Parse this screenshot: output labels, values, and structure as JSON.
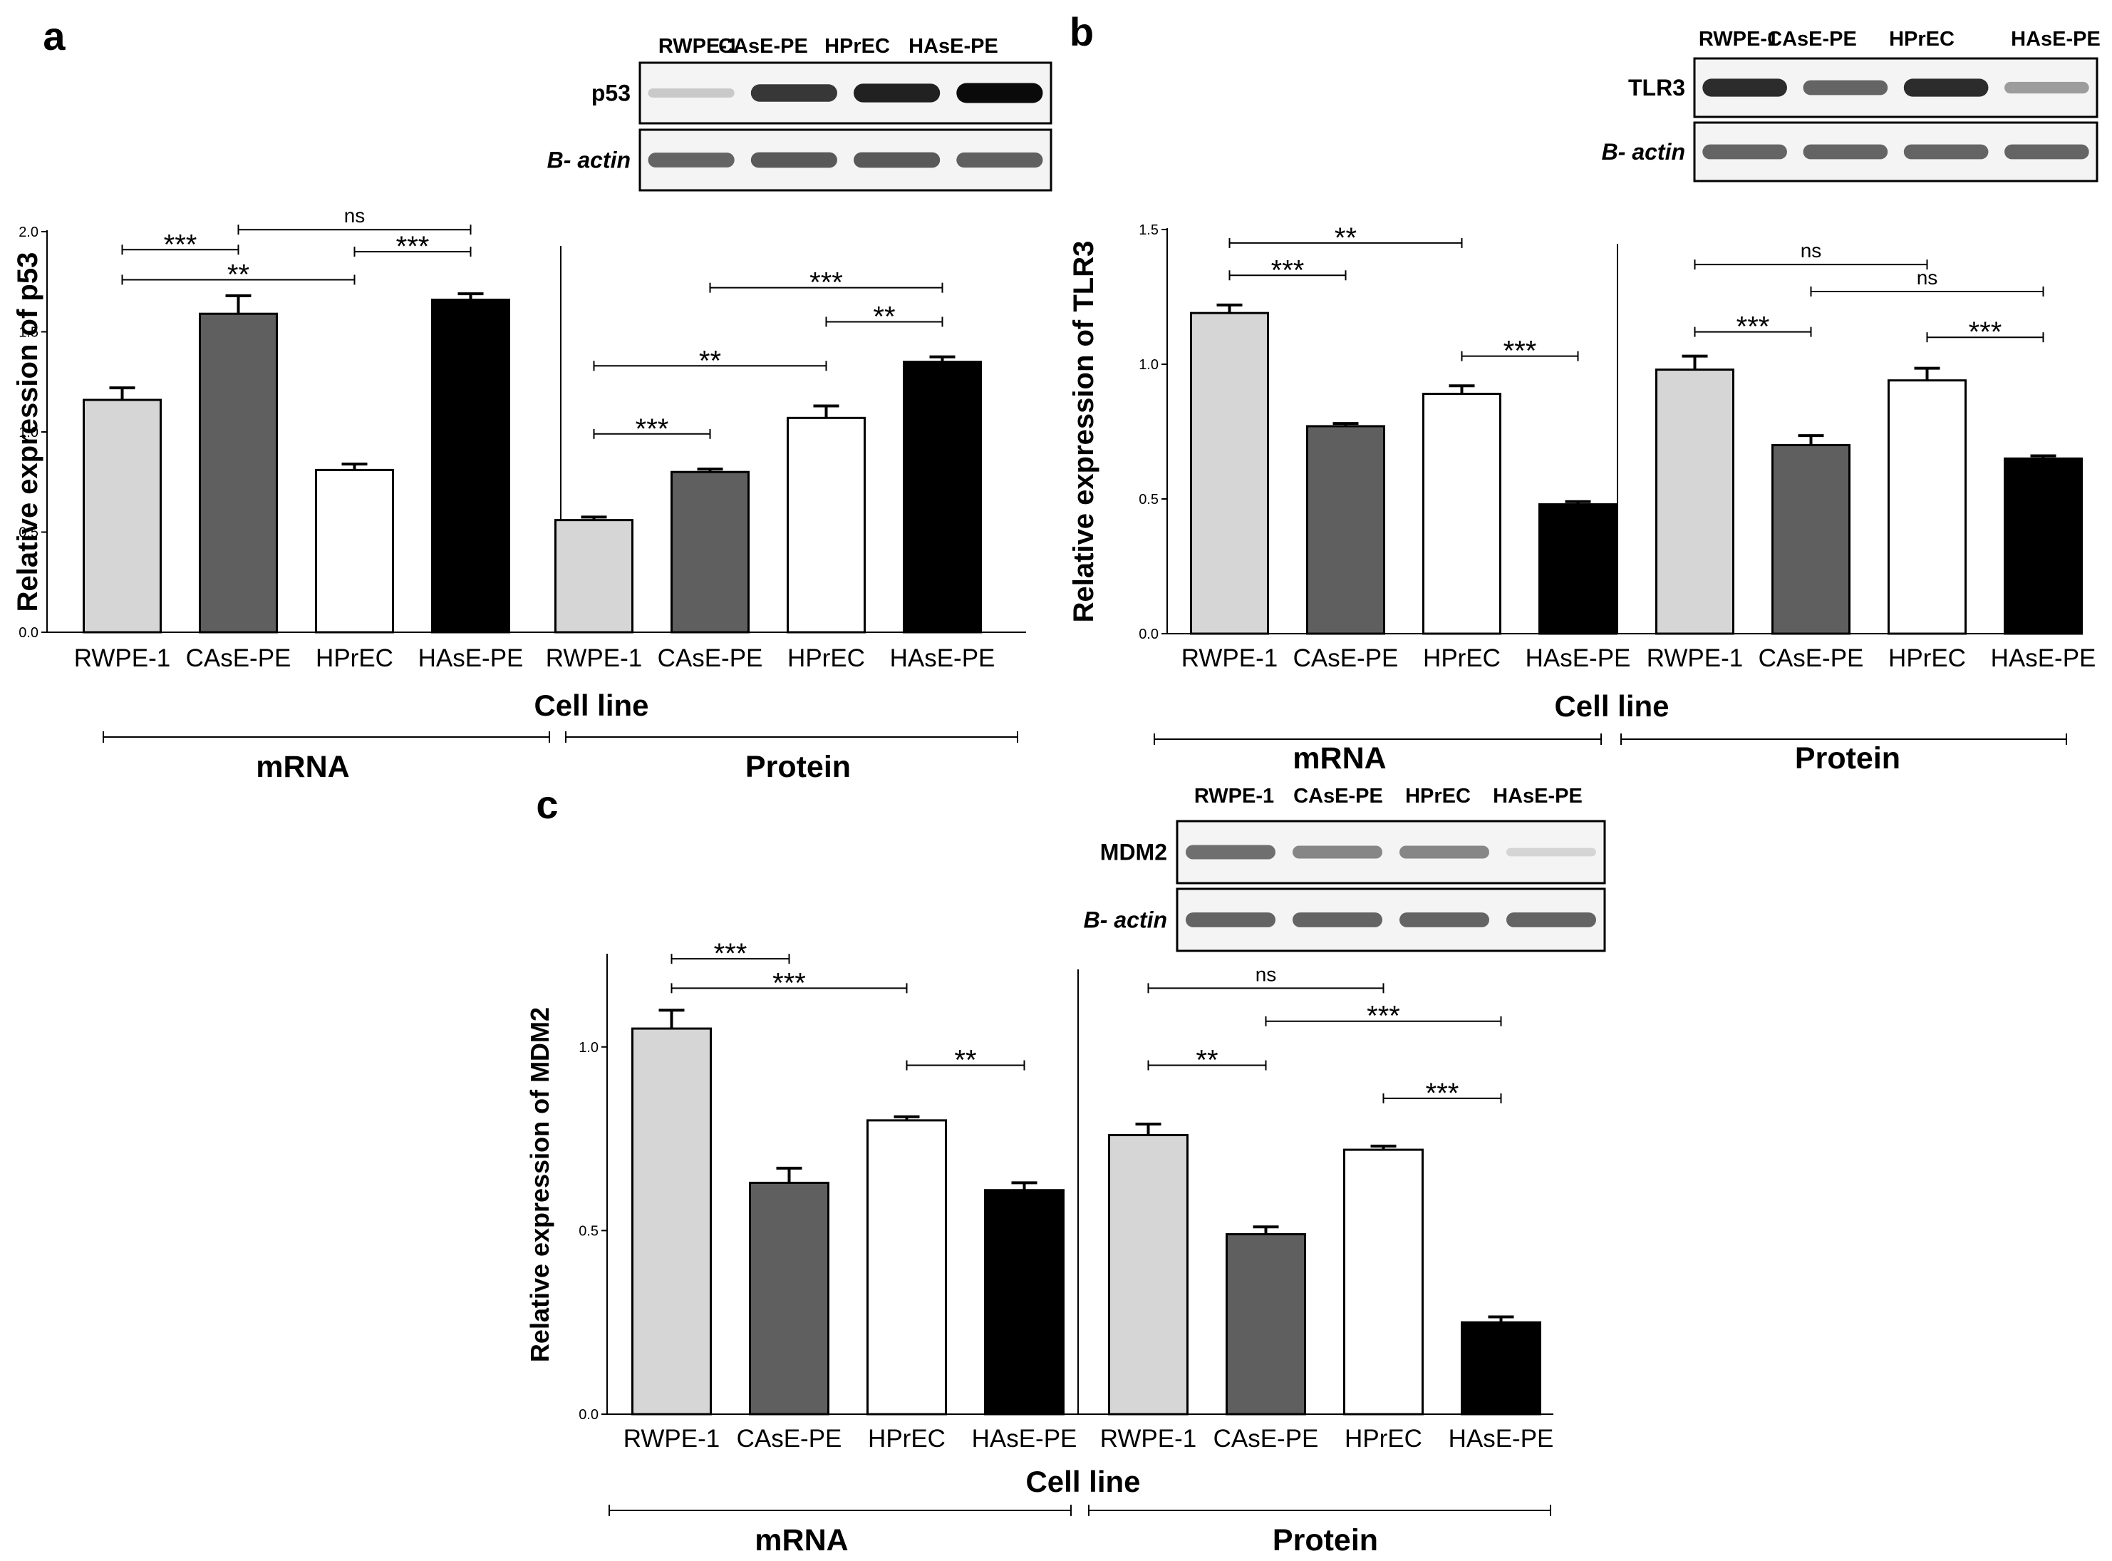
{
  "chart_data": [
    {
      "panel": "a",
      "type": "bar",
      "ylabel": "Relative expression of p53",
      "xlabel": "Cell line",
      "ylim": [
        0,
        2.0
      ],
      "yticks": [
        "0.0",
        "0.5",
        "1.0",
        "1.5",
        "2.0"
      ],
      "groups": [
        {
          "label": "mRNA",
          "categories": [
            "RWPE-1",
            "CAsE-PE",
            "HPrEC",
            "HAsE-PE"
          ],
          "values": [
            1.16,
            1.59,
            0.81,
            1.66
          ],
          "errors": [
            0.06,
            0.09,
            0.03,
            0.03
          ]
        },
        {
          "label": "Protein",
          "categories": [
            "RWPE-1",
            "CAsE-PE",
            "HPrEC",
            "HAsE-PE"
          ],
          "values": [
            0.56,
            0.8,
            1.07,
            1.35
          ],
          "errors": [
            0.015,
            0.015,
            0.06,
            0.025
          ]
        }
      ],
      "significance": [
        {
          "group": 0,
          "from": 0,
          "to": 1,
          "label": "***",
          "y": 1.91
        },
        {
          "group": 0,
          "from": 1,
          "to": 3,
          "label": "ns",
          "y": 2.01
        },
        {
          "group": 0,
          "from": 2,
          "to": 3,
          "label": "***",
          "y": 1.9
        },
        {
          "group": 0,
          "from": 0,
          "to": 2,
          "label": "**",
          "y": 1.76
        },
        {
          "group": 1,
          "from": 1,
          "to": 3,
          "label": "***",
          "y": 1.72
        },
        {
          "group": 1,
          "from": 2,
          "to": 3,
          "label": "**",
          "y": 1.55
        },
        {
          "group": 1,
          "from": 0,
          "to": 2,
          "label": "**",
          "y": 1.33
        },
        {
          "group": 1,
          "from": 0,
          "to": 1,
          "label": "***",
          "y": 0.99
        }
      ],
      "blot": {
        "lanes": [
          "RWPE-1",
          "CAsE-PE",
          "HPrEC",
          "HAsE-PE"
        ],
        "rows": [
          {
            "name": "p53",
            "intensity": [
              0.15,
              0.8,
              0.9,
              1.0
            ]
          },
          {
            "name": "B- actin",
            "intensity": [
              0.6,
              0.65,
              0.65,
              0.62
            ]
          }
        ]
      }
    },
    {
      "panel": "b",
      "type": "bar",
      "ylabel": "Relative expression of TLR3",
      "xlabel": "Cell line",
      "ylim": [
        0,
        1.5
      ],
      "yticks": [
        "0.0",
        "0.5",
        "1.0",
        "1.5"
      ],
      "groups": [
        {
          "label": "mRNA",
          "categories": [
            "RWPE-1",
            "CAsE-PE",
            "HPrEC",
            "HAsE-PE"
          ],
          "values": [
            1.19,
            0.77,
            0.89,
            0.48
          ],
          "errors": [
            0.03,
            0.01,
            0.03,
            0.01
          ]
        },
        {
          "label": "Protein",
          "categories": [
            "RWPE-1",
            "CAsE-PE",
            "HPrEC",
            "HAsE-PE"
          ],
          "values": [
            0.98,
            0.7,
            0.94,
            0.65
          ],
          "errors": [
            0.05,
            0.035,
            0.045,
            0.01
          ]
        }
      ],
      "significance": [
        {
          "group": 0,
          "from": 0,
          "to": 2,
          "label": "**",
          "y": 1.45
        },
        {
          "group": 0,
          "from": 0,
          "to": 1,
          "label": "***",
          "y": 1.33
        },
        {
          "group": 0,
          "from": 2,
          "to": 3,
          "label": "***",
          "y": 1.03
        },
        {
          "group": 1,
          "from": 0,
          "to": 2,
          "label": "ns",
          "y": 1.37
        },
        {
          "group": 1,
          "from": 1,
          "to": 3,
          "label": "ns",
          "y": 1.27
        },
        {
          "group": 1,
          "from": 0,
          "to": 1,
          "label": "***",
          "y": 1.12
        },
        {
          "group": 1,
          "from": 2,
          "to": 3,
          "label": "***",
          "y": 1.1
        }
      ],
      "blot": {
        "lanes": [
          "RWPE-1",
          "CAsE-PE",
          "HPrEC",
          "HAsE-PE"
        ],
        "rows": [
          {
            "name": "TLR3",
            "intensity": [
              0.85,
              0.6,
              0.85,
              0.35
            ]
          },
          {
            "name": "B- actin",
            "intensity": [
              0.6,
              0.6,
              0.6,
              0.6
            ]
          }
        ]
      }
    },
    {
      "panel": "c",
      "type": "bar",
      "ylabel": "Relative expression of MDM2",
      "xlabel": "Cell line",
      "ylim": [
        0,
        1.25
      ],
      "yticks": [
        "0.0",
        "0.5",
        "1.0"
      ],
      "groups": [
        {
          "label": "mRNA",
          "categories": [
            "RWPE-1",
            "CAsE-PE",
            "HPrEC",
            "HAsE-PE"
          ],
          "values": [
            1.05,
            0.63,
            0.8,
            0.61
          ],
          "errors": [
            0.05,
            0.04,
            0.01,
            0.02
          ]
        },
        {
          "label": "Protein",
          "categories": [
            "RWPE-1",
            "CAsE-PE",
            "HPrEC",
            "HAsE-PE"
          ],
          "values": [
            0.76,
            0.49,
            0.72,
            0.25
          ],
          "errors": [
            0.03,
            0.02,
            0.01,
            0.015
          ]
        }
      ],
      "significance": [
        {
          "group": 0,
          "from": 0,
          "to": 1,
          "label": "***",
          "y": 1.24
        },
        {
          "group": 0,
          "from": 0,
          "to": 2,
          "label": "***",
          "y": 1.16
        },
        {
          "group": 0,
          "from": 2,
          "to": 3,
          "label": "**",
          "y": 0.95
        },
        {
          "group": 1,
          "from": 0,
          "to": 2,
          "label": "ns",
          "y": 1.16
        },
        {
          "group": 1,
          "from": 1,
          "to": 3,
          "label": "***",
          "y": 1.07
        },
        {
          "group": 1,
          "from": 0,
          "to": 1,
          "label": "**",
          "y": 0.95
        },
        {
          "group": 1,
          "from": 2,
          "to": 3,
          "label": "***",
          "y": 0.86
        }
      ],
      "blot": {
        "lanes": [
          "RWPE-1",
          "CAsE-PE",
          "HPrEC",
          "HAsE-PE"
        ],
        "rows": [
          {
            "name": "MDM2",
            "intensity": [
              0.55,
              0.45,
              0.45,
              0.1
            ]
          },
          {
            "name": "B- actin",
            "intensity": [
              0.6,
              0.6,
              0.6,
              0.6
            ]
          }
        ]
      }
    }
  ],
  "colors": {
    "bars": [
      "#d6d6d6",
      "#5f5f5f",
      "#ffffff",
      "#000000"
    ],
    "stroke": "#000000"
  }
}
